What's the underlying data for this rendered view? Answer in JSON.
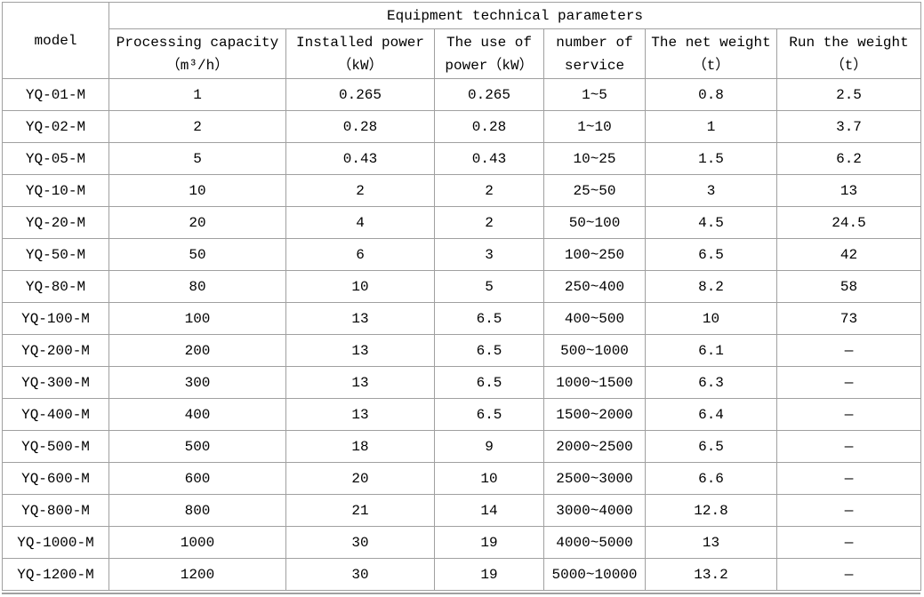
{
  "table": {
    "title": "Equipment technical parameters",
    "model_header": "model",
    "columns": [
      {
        "line1": "Processing capacity",
        "line2": "（m³/h）"
      },
      {
        "line1": "Installed power",
        "line2": "（kW）"
      },
      {
        "line1": "The use of",
        "line2": "power（kW）"
      },
      {
        "line1": "number of",
        "line2": "service"
      },
      {
        "line1": "The net weight",
        "line2": "（t）"
      },
      {
        "line1": "Run the weight",
        "line2": "（t）"
      }
    ],
    "column_keys": [
      "model",
      "processing-capacity",
      "installed-power",
      "use-of-power",
      "number-of-service",
      "net-weight",
      "run-weight"
    ],
    "rows": [
      [
        "YQ-01-M",
        "1",
        "0.265",
        "0.265",
        "1~5",
        "0.8",
        "2.5"
      ],
      [
        "YQ-02-M",
        "2",
        "0.28",
        "0.28",
        "1~10",
        "1",
        "3.7"
      ],
      [
        "YQ-05-M",
        "5",
        "0.43",
        "0.43",
        "10~25",
        "1.5",
        "6.2"
      ],
      [
        "YQ-10-M",
        "10",
        "2",
        "2",
        "25~50",
        "3",
        "13"
      ],
      [
        "YQ-20-M",
        "20",
        "4",
        "2",
        "50~100",
        "4.5",
        "24.5"
      ],
      [
        "YQ-50-M",
        "50",
        "6",
        "3",
        "100~250",
        "6.5",
        "42"
      ],
      [
        "YQ-80-M",
        "80",
        "10",
        "5",
        "250~400",
        "8.2",
        "58"
      ],
      [
        "YQ-100-M",
        "100",
        "13",
        "6.5",
        "400~500",
        "10",
        "73"
      ],
      [
        "YQ-200-M",
        "200",
        "13",
        "6.5",
        "500~1000",
        "6.1",
        "—"
      ],
      [
        "YQ-300-M",
        "300",
        "13",
        "6.5",
        "1000~1500",
        "6.3",
        "—"
      ],
      [
        "YQ-400-M",
        "400",
        "13",
        "6.5",
        "1500~2000",
        "6.4",
        "—"
      ],
      [
        "YQ-500-M",
        "500",
        "18",
        "9",
        "2000~2500",
        "6.5",
        "—"
      ],
      [
        "YQ-600-M",
        "600",
        "20",
        "10",
        "2500~3000",
        "6.6",
        "—"
      ],
      [
        "YQ-800-M",
        "800",
        "21",
        "14",
        "3000~4000",
        "12.8",
        "—"
      ],
      [
        "YQ-1000-M",
        "1000",
        "30",
        "19",
        "4000~5000",
        "13",
        "—"
      ],
      [
        "YQ-1200-M",
        "1200",
        "30",
        "19",
        "5000~10000",
        "13.2",
        "—"
      ]
    ],
    "border_color": "#a0a0a0",
    "text_color": "#000000"
  }
}
